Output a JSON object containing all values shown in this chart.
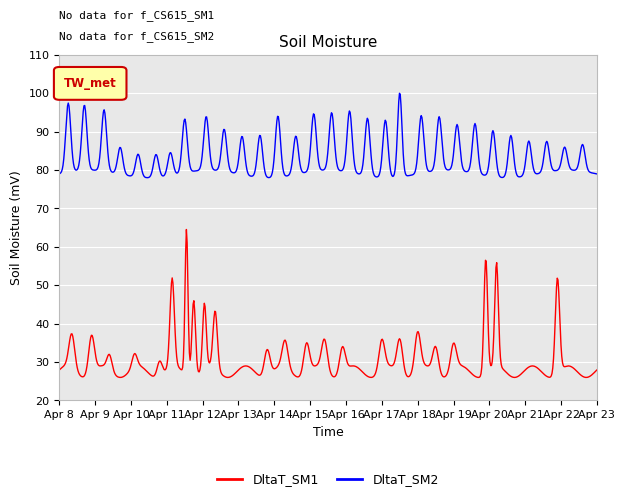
{
  "title": "Soil Moisture",
  "ylabel": "Soil Moisture (mV)",
  "xlabel": "Time",
  "annotation_line1": "No data for f_CS615_SM1",
  "annotation_line2": "No data for f_CS615_SM2",
  "legend_label1": "DltaT_SM1",
  "legend_label2": "DltaT_SM2",
  "legend_patch_label": "TW_met",
  "ylim": [
    20,
    110
  ],
  "yticks": [
    20,
    30,
    40,
    50,
    60,
    70,
    80,
    90,
    100,
    110
  ],
  "color_sm1": "#ff0000",
  "color_sm2": "#0000ff",
  "bg_color": "#e8e8e8",
  "legend_patch_facecolor": "#ffffaa",
  "legend_patch_edgecolor": "#cc0000",
  "legend_patch_textcolor": "#cc0000",
  "title_fontsize": 11,
  "axis_fontsize": 9,
  "tick_fontsize": 8,
  "annot_fontsize": 8
}
